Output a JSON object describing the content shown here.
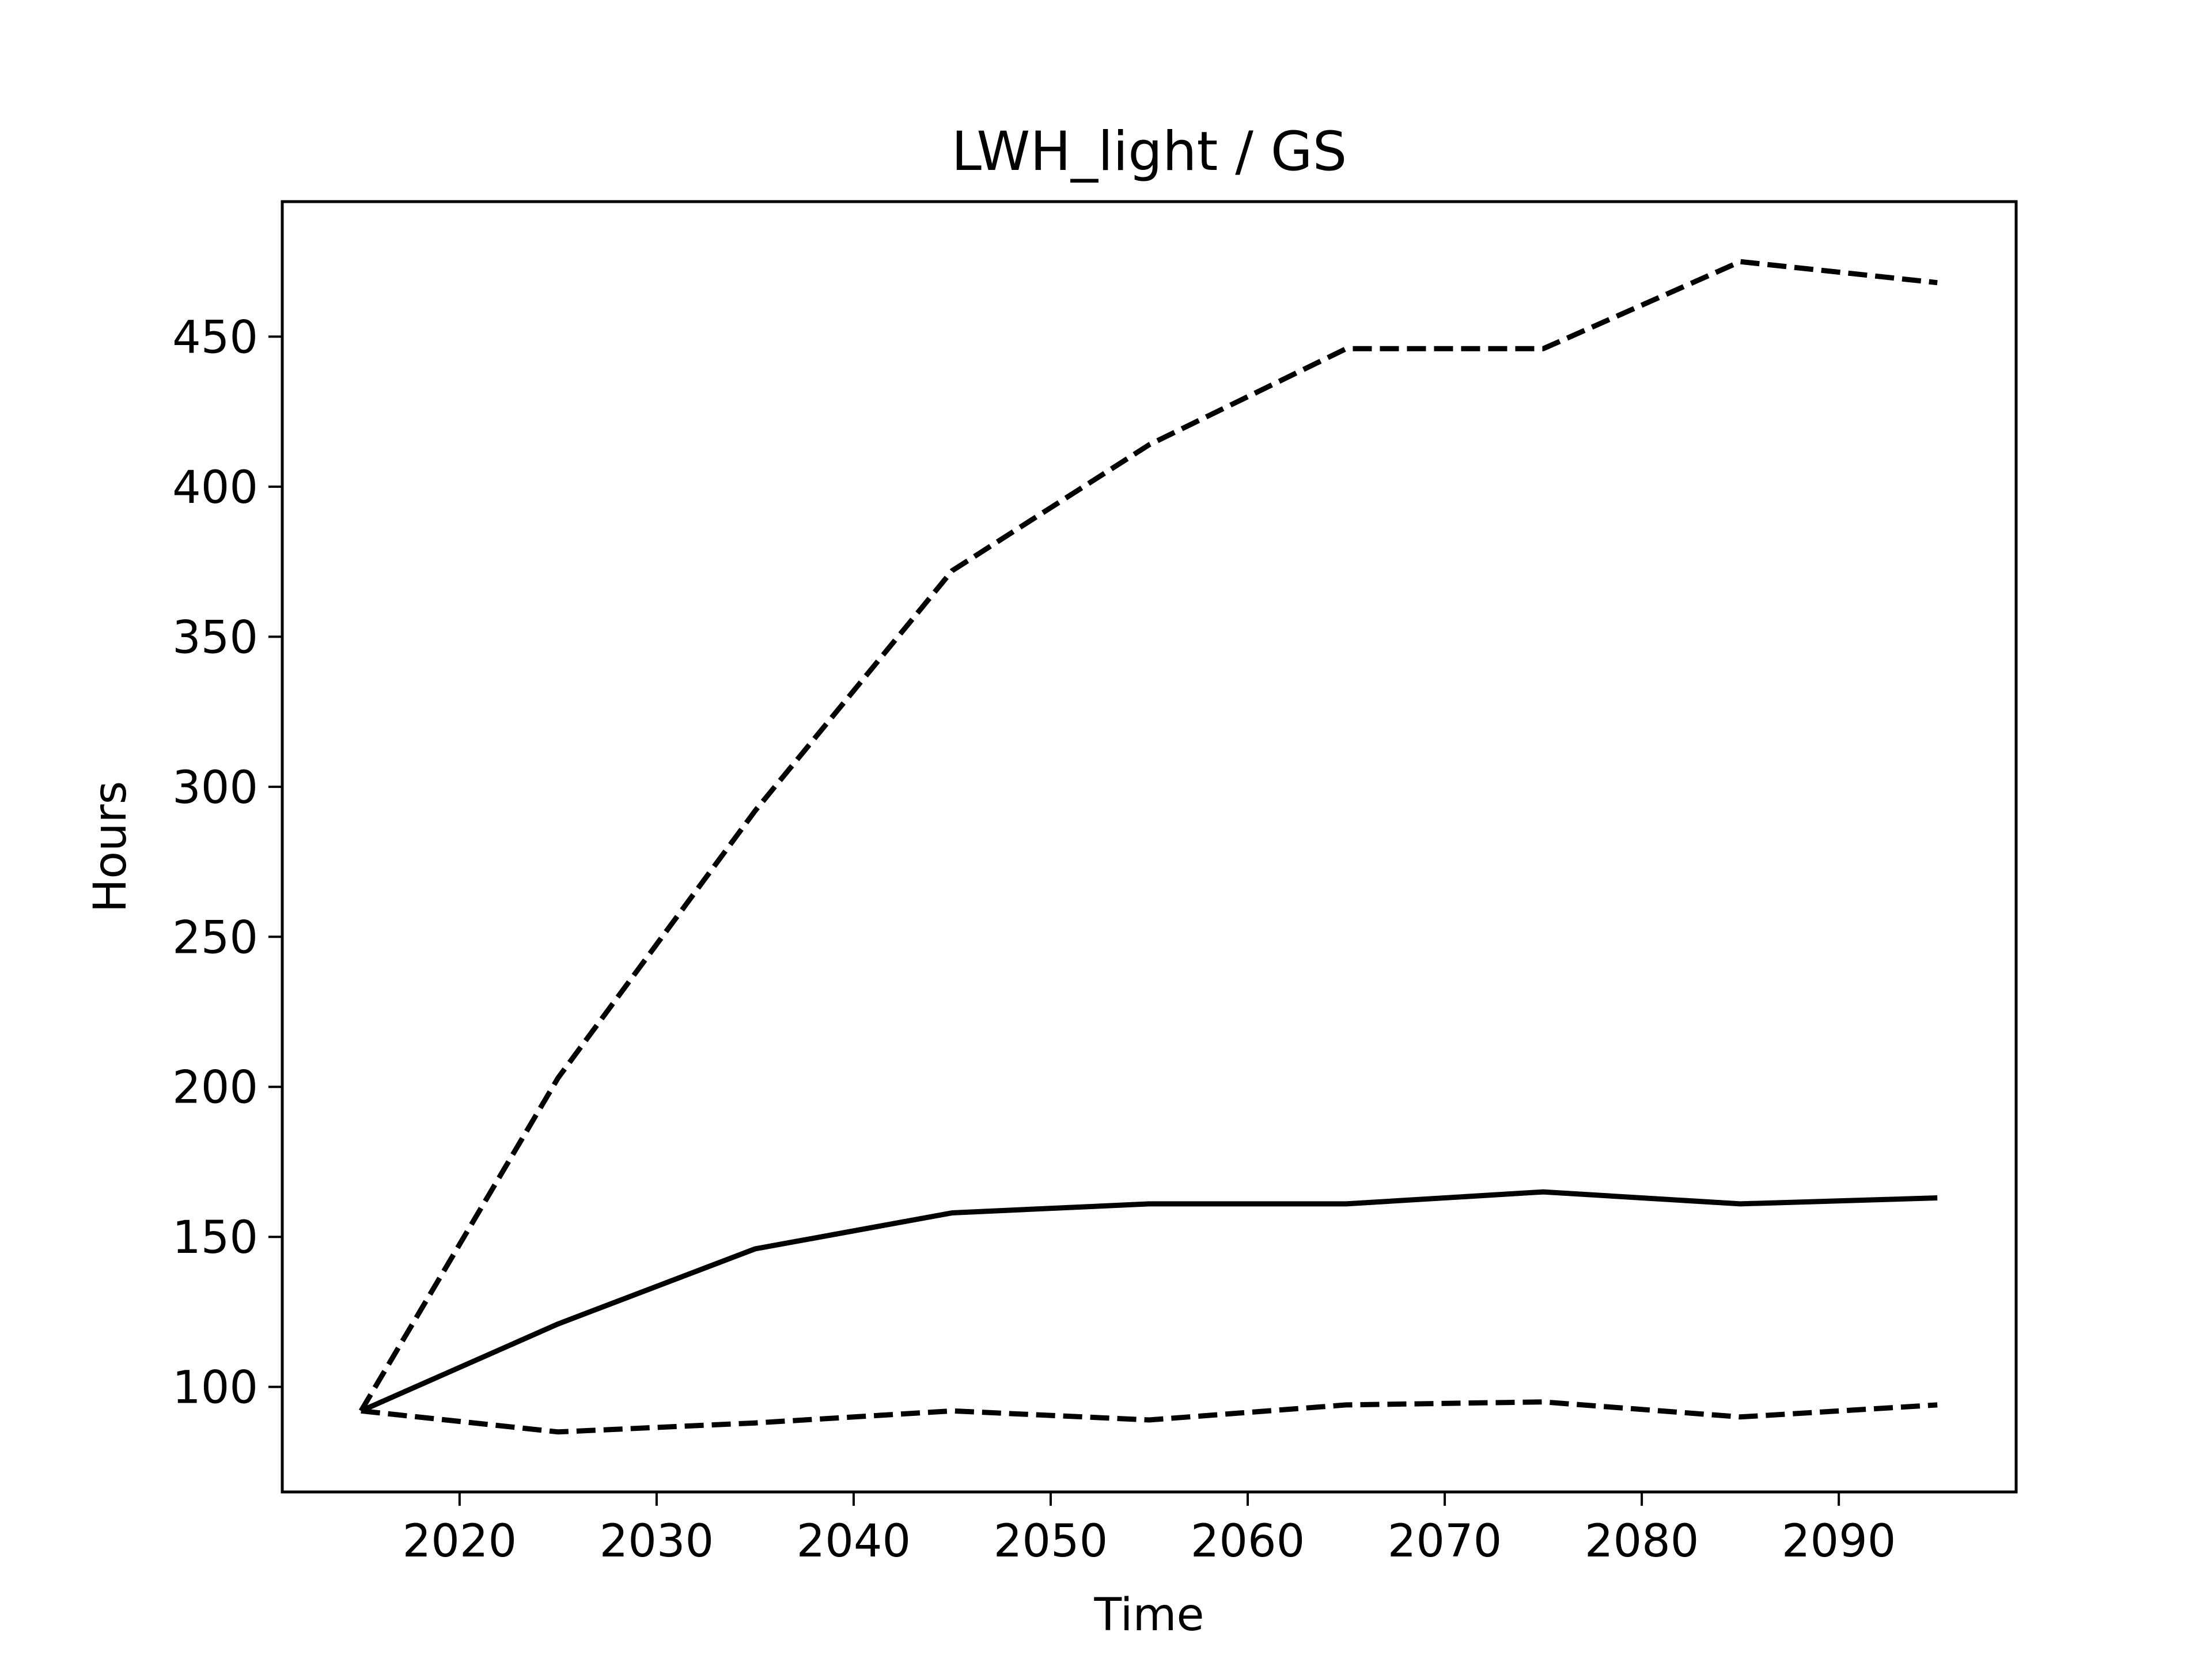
{
  "chart_data": {
    "type": "line",
    "title": "LWH_light / GS",
    "xlabel": "Time",
    "ylabel": "Hours",
    "x": [
      2015,
      2025,
      2035,
      2045,
      2055,
      2065,
      2075,
      2085,
      2095
    ],
    "xlim": [
      2011,
      2099
    ],
    "ylim": [
      65,
      495
    ],
    "xticks": [
      2020,
      2030,
      2040,
      2050,
      2060,
      2070,
      2080,
      2090
    ],
    "yticks": [
      100,
      150,
      200,
      250,
      300,
      350,
      400,
      450
    ],
    "grid": false,
    "series": [
      {
        "style": "solid",
        "color": "#000000",
        "values": [
          92,
          121,
          146,
          158,
          161,
          161,
          165,
          161,
          163
        ]
      },
      {
        "style": "dashed",
        "color": "#000000",
        "values": [
          92,
          203,
          292,
          372,
          414,
          446,
          446,
          475,
          468
        ]
      },
      {
        "style": "dashed",
        "color": "#000000",
        "values": [
          92,
          85,
          88,
          92,
          89,
          94,
          95,
          90,
          94
        ]
      }
    ]
  }
}
